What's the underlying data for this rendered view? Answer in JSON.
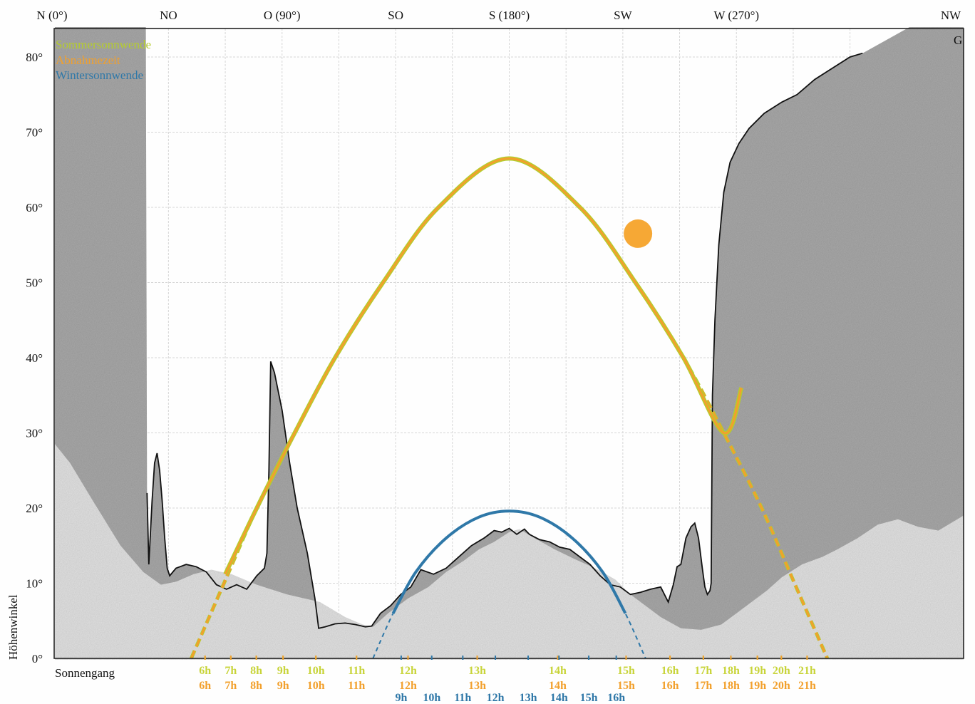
{
  "chart_data": {
    "type": "line",
    "title": "",
    "xlabel": "Sonnengang",
    "ylabel": "Höhenwinkel",
    "xlim": [
      0,
      360
    ],
    "ylim": [
      0,
      85
    ],
    "x_ticks": [
      {
        "value": 0,
        "label": "N (0°)"
      },
      {
        "value": 45,
        "label": "NO"
      },
      {
        "value": 90,
        "label": "O (90°)"
      },
      {
        "value": 135,
        "label": "SO"
      },
      {
        "value": 180,
        "label": "S (180°)"
      },
      {
        "value": 225,
        "label": "SW"
      },
      {
        "value": 270,
        "label": "W (270°)"
      },
      {
        "value": 315,
        "label": "NW"
      }
    ],
    "y_ticks": [
      {
        "value": 0,
        "label": "0°"
      },
      {
        "value": 10,
        "label": "10°"
      },
      {
        "value": 20,
        "label": "20°"
      },
      {
        "value": 30,
        "label": "30°"
      },
      {
        "value": 40,
        "label": "40°"
      },
      {
        "value": 50,
        "label": "50°"
      },
      {
        "value": 60,
        "label": "60°"
      },
      {
        "value": 70,
        "label": "70°"
      },
      {
        "value": 80,
        "label": "80°"
      }
    ],
    "corner_label": "G",
    "grid": true,
    "legend_position": "top-left",
    "legend": [
      {
        "label": "Sommersonnwende",
        "color": "#b5cc2e"
      },
      {
        "label": "Abnahmezeit",
        "color": "#f2a02c"
      },
      {
        "label": "Wintersonnwende",
        "color": "#2f78a8"
      }
    ],
    "series": [
      {
        "name": "Sommersonnwende",
        "color": "#b5cc2e",
        "points": [
          [
            54,
            0
          ],
          [
            67,
            10
          ],
          [
            80,
            20
          ],
          [
            95,
            30
          ],
          [
            111,
            40
          ],
          [
            130,
            50
          ],
          [
            152,
            60
          ],
          [
            180,
            66.5
          ],
          [
            208,
            60
          ],
          [
            230,
            50
          ],
          [
            249,
            40
          ],
          [
            265,
            30
          ],
          [
            280,
            20
          ],
          [
            293,
            10
          ],
          [
            306,
            0
          ]
        ],
        "hours": [
          {
            "x": 59.5,
            "label": "6h"
          },
          {
            "x": 69.7,
            "label": "7h"
          },
          {
            "x": 79.8,
            "label": "8h"
          },
          {
            "x": 90.4,
            "label": "9h"
          },
          {
            "x": 103.4,
            "label": "10h"
          },
          {
            "x": 119.5,
            "label": "11h"
          },
          {
            "x": 139.9,
            "label": "12h"
          },
          {
            "x": 167.3,
            "label": "13h"
          },
          {
            "x": 199.2,
            "label": "14h"
          },
          {
            "x": 226.3,
            "label": "15h"
          },
          {
            "x": 243.7,
            "label": "16h"
          },
          {
            "x": 256.9,
            "label": "17h"
          },
          {
            "x": 267.8,
            "label": "18h"
          },
          {
            "x": 278.3,
            "label": "19h"
          },
          {
            "x": 287.8,
            "label": "20h"
          },
          {
            "x": 298.0,
            "label": "21h"
          }
        ]
      },
      {
        "name": "Abnahmezeit",
        "color": "#f2a02c",
        "points": [
          [
            54,
            0
          ],
          [
            67,
            10
          ],
          [
            80,
            20
          ],
          [
            95,
            30
          ],
          [
            111,
            40
          ],
          [
            130,
            50
          ],
          [
            152,
            60
          ],
          [
            180,
            66.5
          ],
          [
            208,
            60
          ],
          [
            230,
            50
          ],
          [
            249,
            40
          ],
          [
            265,
            30
          ],
          [
            280,
            20
          ],
          [
            293,
            10
          ],
          [
            306,
            0
          ]
        ],
        "marker": {
          "x": 231,
          "y": 56.5
        },
        "hours": [
          {
            "x": 59.5,
            "label": "6h"
          },
          {
            "x": 69.7,
            "label": "7h"
          },
          {
            "x": 79.8,
            "label": "8h"
          },
          {
            "x": 90.4,
            "label": "9h"
          },
          {
            "x": 103.4,
            "label": "10h"
          },
          {
            "x": 119.5,
            "label": "11h"
          },
          {
            "x": 139.9,
            "label": "12h"
          },
          {
            "x": 167.3,
            "label": "13h"
          },
          {
            "x": 199.2,
            "label": "14h"
          },
          {
            "x": 226.3,
            "label": "15h"
          },
          {
            "x": 243.7,
            "label": "16h"
          },
          {
            "x": 256.9,
            "label": "17h"
          },
          {
            "x": 267.8,
            "label": "18h"
          },
          {
            "x": 278.3,
            "label": "19h"
          },
          {
            "x": 287.8,
            "label": "20h"
          },
          {
            "x": 298.0,
            "label": "21h"
          }
        ]
      },
      {
        "name": "Wintersonnwende",
        "color": "#2f78a8",
        "points": [
          [
            126,
            0
          ],
          [
            134,
            6
          ],
          [
            143,
            11.5
          ],
          [
            155,
            16
          ],
          [
            168,
            18.8
          ],
          [
            180,
            19.6
          ],
          [
            192,
            18.8
          ],
          [
            205,
            16
          ],
          [
            217,
            11.5
          ],
          [
            226,
            6
          ],
          [
            234,
            0
          ]
        ],
        "hours": [
          {
            "x": 137.2,
            "label": "9h"
          },
          {
            "x": 149.3,
            "label": "10h"
          },
          {
            "x": 161.6,
            "label": "11h"
          },
          {
            "x": 174.5,
            "label": "12h"
          },
          {
            "x": 187.5,
            "label": "13h"
          },
          {
            "x": 199.7,
            "label": "14h"
          },
          {
            "x": 211.5,
            "label": "15h"
          },
          {
            "x": 222.4,
            "label": "16h"
          }
        ]
      }
    ],
    "horizon_far": [
      [
        0,
        28.5
      ],
      [
        6,
        26
      ],
      [
        15,
        21
      ],
      [
        26,
        15
      ],
      [
        35,
        11.5
      ],
      [
        42,
        9.8
      ],
      [
        48,
        10.2
      ],
      [
        55,
        11.2
      ],
      [
        62,
        11.8
      ],
      [
        70,
        11.2
      ],
      [
        80,
        9.8
      ],
      [
        92,
        8.5
      ],
      [
        105,
        7.5
      ],
      [
        115,
        5.5
      ],
      [
        122,
        4.5
      ],
      [
        126,
        4.2
      ],
      [
        132,
        6
      ],
      [
        140,
        8
      ],
      [
        148,
        9.5
      ],
      [
        155,
        11.5
      ],
      [
        162,
        13
      ],
      [
        168,
        14.5
      ],
      [
        174,
        15.5
      ],
      [
        180,
        16.8
      ],
      [
        184,
        17.2
      ],
      [
        190,
        16
      ],
      [
        198,
        14.5
      ],
      [
        206,
        13.2
      ],
      [
        214,
        12
      ],
      [
        222,
        10.5
      ],
      [
        228,
        8.5
      ],
      [
        234,
        7
      ],
      [
        240,
        5.5
      ],
      [
        248,
        4
      ],
      [
        256,
        3.8
      ],
      [
        264,
        4.5
      ],
      [
        270,
        6
      ],
      [
        276,
        7.5
      ],
      [
        282,
        9
      ],
      [
        288,
        10.8
      ],
      [
        296,
        12.5
      ],
      [
        304,
        13.5
      ],
      [
        310,
        14.5
      ],
      [
        318,
        16
      ],
      [
        326,
        17.8
      ],
      [
        334,
        18.5
      ],
      [
        342,
        17.5
      ],
      [
        350,
        17
      ],
      [
        360,
        19
      ]
    ],
    "horizon_near": [
      [
        0,
        88
      ],
      [
        36,
        88
      ],
      [
        36.5,
        22
      ],
      [
        37.2,
        12.5
      ],
      [
        38.5,
        21
      ],
      [
        39.5,
        26
      ],
      [
        40.5,
        27.3
      ],
      [
        41.5,
        25
      ],
      [
        42.5,
        21
      ],
      [
        43.5,
        16
      ],
      [
        44.5,
        12
      ],
      [
        45.5,
        11
      ],
      [
        48,
        12
      ],
      [
        52,
        12.5
      ],
      [
        56,
        12.2
      ],
      [
        60,
        11.5
      ],
      [
        64,
        9.8
      ],
      [
        68,
        9.2
      ],
      [
        72,
        9.8
      ],
      [
        76,
        9.2
      ],
      [
        80,
        11
      ],
      [
        83,
        12
      ],
      [
        84,
        14
      ],
      [
        84.8,
        25
      ],
      [
        85.5,
        39.5
      ],
      [
        87,
        38
      ],
      [
        90,
        33
      ],
      [
        93,
        26
      ],
      [
        96,
        20
      ],
      [
        100,
        14
      ],
      [
        103,
        8
      ],
      [
        104.5,
        4
      ],
      [
        107,
        4.2
      ],
      [
        111,
        4.6
      ],
      [
        115,
        4.7
      ],
      [
        119,
        4.5
      ],
      [
        123,
        4.2
      ],
      [
        125.5,
        4.3
      ],
      [
        129,
        6
      ],
      [
        133,
        7
      ],
      [
        137,
        8.5
      ],
      [
        141,
        9.5
      ],
      [
        145,
        11.8
      ],
      [
        150,
        11.2
      ],
      [
        155,
        12
      ],
      [
        160,
        13.5
      ],
      [
        165,
        15
      ],
      [
        170,
        16
      ],
      [
        174,
        17
      ],
      [
        177,
        16.8
      ],
      [
        180,
        17.3
      ],
      [
        183,
        16.5
      ],
      [
        186,
        17.2
      ],
      [
        188,
        16.5
      ],
      [
        192,
        15.8
      ],
      [
        196,
        15.5
      ],
      [
        200,
        14.8
      ],
      [
        204,
        14.5
      ],
      [
        208,
        13.5
      ],
      [
        212,
        12.5
      ],
      [
        216,
        11
      ],
      [
        220,
        9.8
      ],
      [
        224,
        9.5
      ],
      [
        228,
        8.5
      ],
      [
        232,
        8.8
      ],
      [
        236,
        9.2
      ],
      [
        240,
        9.5
      ],
      [
        243,
        7.5
      ],
      [
        245,
        9.8
      ],
      [
        246.5,
        12.2
      ],
      [
        248,
        12.5
      ],
      [
        250,
        16
      ],
      [
        252,
        17.5
      ],
      [
        253.5,
        18
      ],
      [
        255,
        16
      ],
      [
        256.5,
        12
      ],
      [
        257.5,
        9.5
      ],
      [
        258.5,
        8.5
      ],
      [
        259.5,
        9
      ],
      [
        260,
        10
      ],
      [
        260.5,
        35
      ],
      [
        261.5,
        45
      ],
      [
        263,
        55
      ],
      [
        265,
        62
      ],
      [
        267.5,
        66
      ],
      [
        271,
        68.5
      ],
      [
        275,
        70.5
      ],
      [
        281,
        72.5
      ],
      [
        288,
        74
      ],
      [
        294,
        75
      ],
      [
        301,
        77
      ],
      [
        308,
        78.5
      ],
      [
        315,
        80
      ],
      [
        320,
        80.5
      ],
      [
        360,
        88
      ]
    ]
  }
}
